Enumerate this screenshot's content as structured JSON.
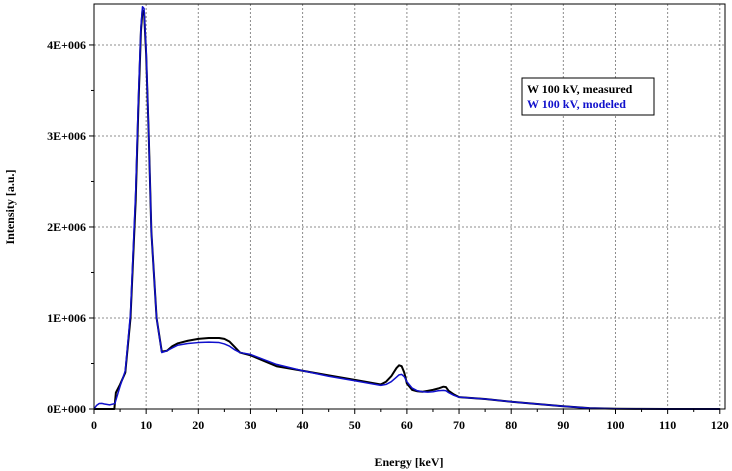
{
  "chart_data": {
    "type": "line",
    "title": "",
    "xlabel": "Energy [keV]",
    "ylabel": "Intensity [a.u.]",
    "xlim": [
      0,
      121
    ],
    "ylim": [
      0,
      4450000
    ],
    "grid": true,
    "legend_placement": "top-right",
    "x_ticks": [
      0,
      10,
      20,
      30,
      40,
      50,
      60,
      70,
      80,
      90,
      100,
      110,
      120
    ],
    "x_tick_labels": [
      "0",
      "10",
      "20",
      "30",
      "40",
      "50",
      "60",
      "70",
      "80",
      "90",
      "100",
      "110",
      "120"
    ],
    "y_ticks": [
      0,
      1000000,
      2000000,
      3000000,
      4000000
    ],
    "y_tick_labels": [
      "0E+000",
      "1E+006",
      "2E+006",
      "3E+006",
      "4E+006"
    ],
    "series": [
      {
        "name": "W 100 kV, measured",
        "color": "#000000",
        "x": [
          0,
          2,
          3.9,
          4.2,
          5,
          6,
          7,
          8,
          8.5,
          9,
          9.3,
          9.6,
          10,
          10.5,
          11,
          12,
          13,
          14,
          15,
          16,
          18,
          20,
          22,
          24,
          25,
          26,
          27,
          28,
          30,
          35,
          40,
          45,
          50,
          55,
          56,
          57,
          58,
          58.5,
          59,
          59.5,
          60,
          61,
          62,
          63,
          64,
          65,
          66,
          67,
          67.5,
          68,
          69,
          70,
          75,
          80,
          85,
          90,
          95,
          100,
          105,
          110,
          115,
          120
        ],
        "y": [
          0,
          0,
          0,
          180000,
          270000,
          400000,
          1000000,
          2300000,
          3300000,
          4150000,
          4380000,
          4360000,
          3900000,
          3000000,
          1950000,
          1000000,
          630000,
          640000,
          690000,
          720000,
          750000,
          770000,
          780000,
          780000,
          770000,
          740000,
          680000,
          620000,
          590000,
          470000,
          420000,
          370000,
          320000,
          270000,
          300000,
          360000,
          450000,
          480000,
          470000,
          400000,
          280000,
          210000,
          195000,
          190000,
          200000,
          210000,
          225000,
          245000,
          240000,
          200000,
          160000,
          130000,
          110000,
          80000,
          55000,
          30000,
          10000,
          3000,
          1000,
          500,
          200,
          0
        ]
      },
      {
        "name": "W 100 kV, modeled",
        "color": "#1010cc",
        "x": [
          0,
          0.5,
          1,
          1.5,
          2,
          3,
          4,
          5,
          6,
          7,
          8,
          8.5,
          9,
          9.3,
          9.6,
          10,
          10.5,
          11,
          12,
          13,
          14,
          15,
          16,
          18,
          20,
          22,
          24,
          25,
          26,
          27,
          28,
          30,
          35,
          40,
          45,
          50,
          55,
          56,
          57,
          58,
          58.5,
          59,
          59.5,
          60,
          61,
          62,
          63,
          64,
          65,
          66,
          67,
          67.5,
          68,
          69,
          70,
          75,
          80,
          85,
          90,
          95,
          100,
          105,
          110,
          115,
          120
        ],
        "y": [
          0,
          40000,
          60000,
          62000,
          55000,
          45000,
          60000,
          250000,
          420000,
          1050000,
          2400000,
          3400000,
          4200000,
          4420000,
          4400000,
          3950000,
          3000000,
          1950000,
          1000000,
          620000,
          640000,
          670000,
          700000,
          720000,
          730000,
          735000,
          730000,
          715000,
          690000,
          650000,
          620000,
          600000,
          490000,
          420000,
          360000,
          310000,
          260000,
          270000,
          300000,
          350000,
          375000,
          380000,
          355000,
          300000,
          230000,
          200000,
          190000,
          185000,
          190000,
          200000,
          205000,
          200000,
          180000,
          150000,
          130000,
          110000,
          80000,
          55000,
          30000,
          10000,
          3000,
          1000,
          500,
          200,
          0
        ]
      }
    ]
  }
}
